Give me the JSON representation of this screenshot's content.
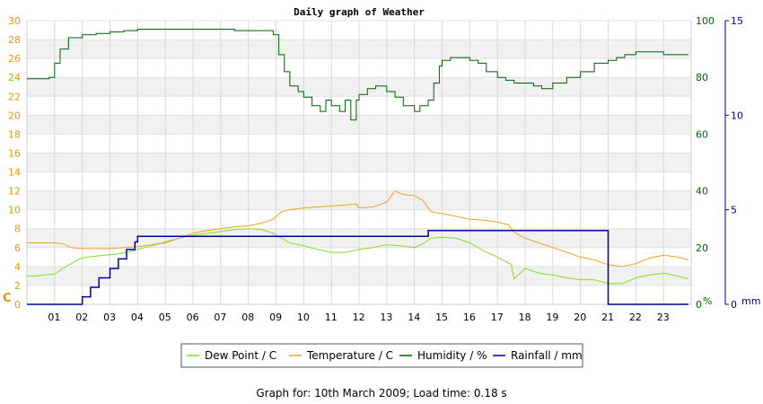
{
  "chart_data": {
    "type": "line",
    "title": "Daily graph of Weather",
    "x_ticks": [
      "01",
      "02",
      "03",
      "04",
      "05",
      "06",
      "07",
      "08",
      "09",
      "10",
      "11",
      "12",
      "13",
      "14",
      "15",
      "16",
      "17",
      "18",
      "19",
      "20",
      "21",
      "22",
      "23"
    ],
    "xlim": [
      0,
      24
    ],
    "axes": {
      "left": {
        "label": "C",
        "color": "#e69a00",
        "ylim": [
          0,
          30
        ],
        "ticks": [
          0,
          2,
          4,
          6,
          8,
          10,
          12,
          14,
          16,
          18,
          20,
          22,
          24,
          26,
          28,
          30
        ]
      },
      "right1": {
        "label": "%",
        "color": "#006400",
        "ylim": [
          0,
          100
        ],
        "ticks": [
          0,
          20,
          40,
          60,
          80,
          100
        ]
      },
      "right2": {
        "label": "mm",
        "color": "#00008b",
        "ylim": [
          0,
          15
        ],
        "ticks": [
          0,
          5,
          10,
          15
        ]
      }
    },
    "grid": true,
    "legend_position": "bottom",
    "series": [
      {
        "name": "Dew Point / C",
        "color": "#80e020",
        "axis": "left",
        "x": [
          0,
          0.3,
          0.6,
          1.0,
          1.3,
          1.6,
          1.9,
          2.2,
          2.5,
          2.8,
          3.2,
          3.6,
          4.0,
          4.5,
          5.0,
          5.5,
          6.0,
          6.5,
          7.0,
          7.5,
          8.0,
          8.5,
          8.9,
          9.2,
          9.5,
          10.0,
          10.5,
          11.0,
          11.5,
          12.0,
          12.5,
          13.0,
          13.5,
          14.0,
          14.3,
          14.6,
          15.0,
          15.5,
          16.0,
          16.3,
          16.6,
          17.0,
          17.5,
          17.6,
          18.0,
          18.5,
          19.0,
          19.5,
          20.0,
          20.5,
          21.0,
          21.5,
          22.0,
          22.5,
          23.0,
          23.5,
          23.9
        ],
        "y": [
          3.0,
          3.0,
          3.1,
          3.2,
          3.8,
          4.3,
          4.8,
          5.0,
          5.1,
          5.2,
          5.3,
          5.5,
          5.8,
          6.2,
          6.6,
          7.0,
          7.3,
          7.5,
          7.7,
          7.9,
          8.0,
          7.9,
          7.5,
          7.0,
          6.5,
          6.2,
          5.8,
          5.5,
          5.5,
          5.8,
          6.0,
          6.3,
          6.2,
          6.0,
          6.4,
          7.0,
          7.1,
          7.0,
          6.5,
          6.0,
          5.5,
          5.0,
          4.2,
          2.7,
          3.8,
          3.3,
          3.1,
          2.8,
          2.6,
          2.6,
          2.2,
          2.2,
          2.8,
          3.1,
          3.3,
          3.0,
          2.7
        ]
      },
      {
        "name": "Temperature / C",
        "color": "#f0a020",
        "axis": "left",
        "x": [
          0,
          0.5,
          1.0,
          1.3,
          1.6,
          2.0,
          2.5,
          3.0,
          3.5,
          4.0,
          4.5,
          5.0,
          5.5,
          6.0,
          6.5,
          7.0,
          7.5,
          8.0,
          8.5,
          8.9,
          9.2,
          9.5,
          10.0,
          10.5,
          11.0,
          11.5,
          11.9,
          12.0,
          12.5,
          13.0,
          13.3,
          13.6,
          14.0,
          14.3,
          14.6,
          15.0,
          15.5,
          16.0,
          16.5,
          17.0,
          17.4,
          17.6,
          18.0,
          18.5,
          19.0,
          19.5,
          20.0,
          20.5,
          21.0,
          21.5,
          22.0,
          22.5,
          23.0,
          23.5,
          23.9
        ],
        "y": [
          6.5,
          6.5,
          6.5,
          6.4,
          6.0,
          5.9,
          5.9,
          5.9,
          6.0,
          6.1,
          6.3,
          6.5,
          7.0,
          7.5,
          7.8,
          8.0,
          8.2,
          8.3,
          8.6,
          9.0,
          9.8,
          10.0,
          10.2,
          10.3,
          10.4,
          10.5,
          10.6,
          10.2,
          10.3,
          10.8,
          12.0,
          11.6,
          11.5,
          11.0,
          9.8,
          9.6,
          9.3,
          9.0,
          8.9,
          8.7,
          8.4,
          7.6,
          7.0,
          6.5,
          6.0,
          5.5,
          5.0,
          4.7,
          4.2,
          4.0,
          4.3,
          4.9,
          5.2,
          5.0,
          4.7
        ]
      },
      {
        "name": "Humidity / %",
        "color": "#006000",
        "axis": "right1",
        "x": [
          0,
          0.5,
          0.8,
          1.0,
          1.2,
          1.5,
          2.0,
          2.5,
          3.0,
          3.5,
          4.0,
          4.5,
          5.0,
          5.5,
          6.0,
          6.5,
          7.0,
          7.5,
          8.0,
          8.5,
          8.9,
          9.1,
          9.3,
          9.5,
          9.8,
          10.0,
          10.3,
          10.6,
          10.8,
          11.0,
          11.3,
          11.5,
          11.7,
          11.9,
          12.0,
          12.3,
          12.6,
          13.0,
          13.3,
          13.6,
          14.0,
          14.2,
          14.5,
          14.7,
          14.9,
          15.0,
          15.3,
          15.6,
          16.0,
          16.3,
          16.6,
          17.0,
          17.3,
          17.6,
          17.9,
          18.0,
          18.3,
          18.6,
          19.0,
          19.5,
          20.0,
          20.5,
          21.0,
          21.3,
          21.6,
          22.0,
          22.5,
          23.0,
          23.5,
          23.9
        ],
        "y": [
          79.5,
          79.5,
          80,
          85,
          90,
          94,
          95,
          95.5,
          96,
          96.5,
          97,
          97,
          97,
          97,
          97,
          97,
          97,
          96.5,
          96.5,
          96.5,
          95,
          88,
          82,
          77,
          75,
          73,
          70,
          68,
          72,
          70,
          68,
          72,
          65,
          72,
          74,
          76,
          77,
          75,
          73,
          70,
          68,
          70,
          72,
          78,
          84,
          86,
          87,
          87,
          86,
          85,
          82,
          80,
          79,
          78,
          78,
          78,
          77,
          76,
          78,
          80,
          82,
          85,
          86,
          87,
          88,
          89,
          89,
          88,
          88,
          88
        ]
      },
      {
        "name": "Rainfall / mm",
        "color": "#000099",
        "axis": "right2",
        "x": [
          0,
          1.0,
          1.8,
          2.0,
          2.3,
          2.6,
          3.0,
          3.3,
          3.6,
          3.9,
          4.0,
          8.0,
          9.0,
          14.0,
          14.5,
          15.0,
          20.0,
          21.0,
          21.5,
          23.9
        ],
        "y": [
          0,
          0,
          0,
          0.4,
          0.9,
          1.4,
          1.9,
          2.4,
          2.9,
          3.3,
          3.6,
          3.6,
          3.6,
          3.6,
          3.9,
          3.9,
          3.9,
          0,
          0,
          0
        ]
      }
    ]
  },
  "footer": {
    "text": "Graph for: 10th March 2009; Load time: 0.18 s"
  }
}
